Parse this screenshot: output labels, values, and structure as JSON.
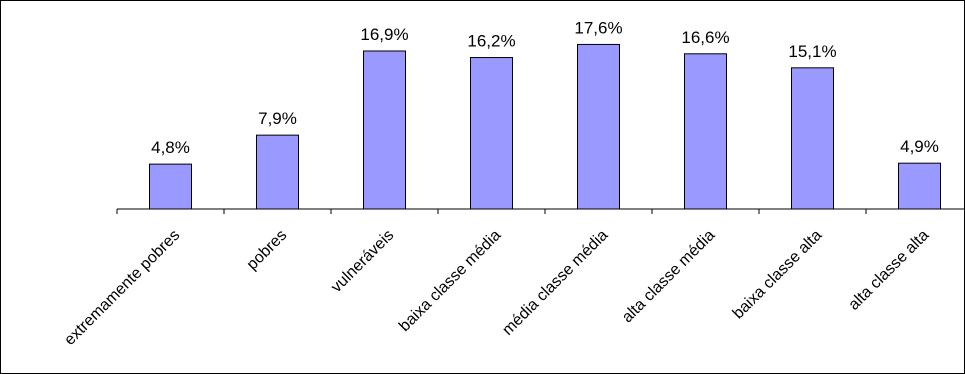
{
  "chart_data": {
    "type": "bar",
    "title": "",
    "xlabel": "",
    "ylabel": "",
    "categories": [
      "extremamente pobres",
      "pobres",
      "vulneráveis",
      "baixa classe média",
      "média classe média",
      "alta classe média",
      "baixa classe alta",
      "alta classe alta"
    ],
    "values": [
      4.8,
      7.9,
      16.9,
      16.2,
      17.6,
      16.6,
      15.1,
      4.9
    ],
    "data_labels": [
      "4,8%",
      "7,9%",
      "16,9%",
      "16,2%",
      "17,6%",
      "16,6%",
      "15,1%",
      "4,9%"
    ],
    "ylim": [
      0,
      19.5
    ],
    "grid": false,
    "legend": "none",
    "colors": {
      "bar_fill": "#9999ff",
      "bar_stroke": "#000000"
    }
  }
}
